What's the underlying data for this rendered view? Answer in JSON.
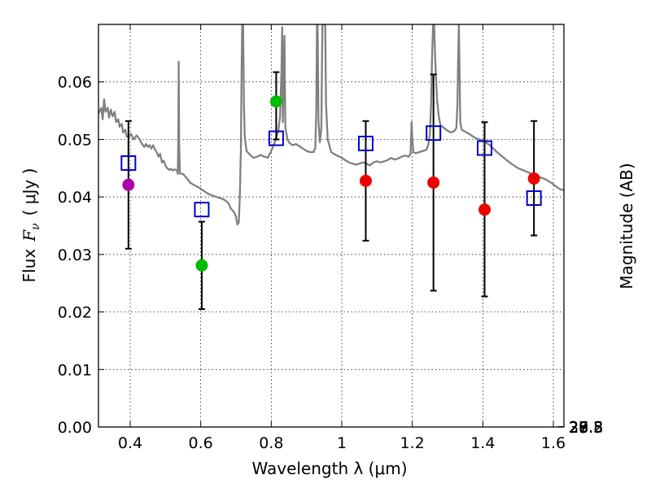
{
  "chart_data": {
    "type": "scatter",
    "title": "",
    "xlabel": "Wavelength  λ (μm)",
    "ylabel": "Flux  F_ν  ( μJy )",
    "ylabel_parts": {
      "prefix": "Flux",
      "symbol": "F",
      "subscript": "ν",
      "unit": "( μJy )"
    },
    "y2label": "Magnitude (AB)",
    "xlim": [
      0.31,
      1.63
    ],
    "ylim": [
      0.0,
      0.07
    ],
    "grid": true,
    "x_ticks": [
      0.4,
      0.6,
      0.8,
      1.0,
      1.2,
      1.4,
      1.6
    ],
    "x_tick_labels": [
      "0.4",
      "0.6",
      "0.8",
      "1",
      "1.2",
      "1.4",
      "1.6"
    ],
    "y_ticks": [
      0.0,
      0.01,
      0.02,
      0.03,
      0.04,
      0.05,
      0.06
    ],
    "y_tick_labels": [
      "0.00",
      "0.01",
      "0.02",
      "0.03",
      "0.04",
      "0.05",
      "0.06"
    ],
    "y2_ticks": [
      26.8,
      27,
      27.2,
      27.5,
      28,
      28.5,
      29,
      30
    ],
    "y2_tick_labels": [
      "26.8",
      "27",
      "27.2",
      "27.5",
      "28",
      "28.5",
      "29",
      "30"
    ],
    "colors": {
      "template": "#808080",
      "model": "#0000cc",
      "errorbar": "#000000"
    },
    "observed": [
      {
        "band": 1,
        "x": 0.395,
        "y": 0.0421,
        "yerr_low": 0.031,
        "yerr_high": 0.0532,
        "color": "#aa00aa"
      },
      {
        "band": 2,
        "x": 0.603,
        "y": 0.0281,
        "yerr_low": 0.0205,
        "yerr_high": 0.0357,
        "color": "#00bb00"
      },
      {
        "band": 3,
        "x": 0.814,
        "y": 0.0566,
        "yerr_low": 0.05,
        "yerr_high": 0.0617,
        "color": "#00bb00"
      },
      {
        "band": 4,
        "x": 1.068,
        "y": 0.0428,
        "yerr_low": 0.0324,
        "yerr_high": 0.0532,
        "color": "#ee0000"
      },
      {
        "band": 5,
        "x": 1.26,
        "y": 0.0425,
        "yerr_low": 0.0237,
        "yerr_high": 0.0613,
        "color": "#ee0000"
      },
      {
        "band": 6,
        "x": 1.405,
        "y": 0.0378,
        "yerr_low": 0.0227,
        "yerr_high": 0.053,
        "color": "#ee0000"
      },
      {
        "band": 7,
        "x": 1.545,
        "y": 0.0432,
        "yerr_low": 0.0333,
        "yerr_high": 0.0532,
        "color": "#ee0000"
      }
    ],
    "model_points": [
      {
        "x": 0.395,
        "y": 0.0459
      },
      {
        "x": 0.603,
        "y": 0.0378
      },
      {
        "x": 0.814,
        "y": 0.0502
      },
      {
        "x": 1.068,
        "y": 0.0493
      },
      {
        "x": 1.26,
        "y": 0.0511
      },
      {
        "x": 1.405,
        "y": 0.0485
      },
      {
        "x": 1.545,
        "y": 0.0398
      }
    ],
    "template_spectrum": [
      [
        0.31,
        0.0545
      ],
      [
        0.318,
        0.0555
      ],
      [
        0.322,
        0.0535
      ],
      [
        0.326,
        0.057
      ],
      [
        0.33,
        0.0548
      ],
      [
        0.336,
        0.0555
      ],
      [
        0.34,
        0.0538
      ],
      [
        0.345,
        0.0552
      ],
      [
        0.35,
        0.054
      ],
      [
        0.356,
        0.0548
      ],
      [
        0.36,
        0.053
      ],
      [
        0.366,
        0.0535
      ],
      [
        0.37,
        0.0522
      ],
      [
        0.376,
        0.0527
      ],
      [
        0.38,
        0.0512
      ],
      [
        0.386,
        0.0517
      ],
      [
        0.39,
        0.0505
      ],
      [
        0.397,
        0.0505
      ],
      [
        0.402,
        0.051
      ],
      [
        0.41,
        0.05
      ],
      [
        0.418,
        0.0507
      ],
      [
        0.425,
        0.0502
      ],
      [
        0.43,
        0.0496
      ],
      [
        0.436,
        0.049
      ],
      [
        0.44,
        0.0487
      ],
      [
        0.445,
        0.0492
      ],
      [
        0.45,
        0.0487
      ],
      [
        0.455,
        0.049
      ],
      [
        0.46,
        0.0484
      ],
      [
        0.465,
        0.049
      ],
      [
        0.47,
        0.0483
      ],
      [
        0.475,
        0.0478
      ],
      [
        0.48,
        0.047
      ],
      [
        0.485,
        0.0475
      ],
      [
        0.49,
        0.046
      ],
      [
        0.495,
        0.0463
      ],
      [
        0.5,
        0.0455
      ],
      [
        0.505,
        0.045
      ],
      [
        0.51,
        0.0447
      ],
      [
        0.515,
        0.0449
      ],
      [
        0.52,
        0.0446
      ],
      [
        0.525,
        0.0448
      ],
      [
        0.53,
        0.0447
      ],
      [
        0.533,
        0.0445
      ],
      [
        0.535,
        0.044
      ],
      [
        0.5365,
        0.051
      ],
      [
        0.5375,
        0.0635
      ],
      [
        0.539,
        0.049
      ],
      [
        0.541,
        0.0441
      ],
      [
        0.55,
        0.044
      ],
      [
        0.56,
        0.0433
      ],
      [
        0.57,
        0.0425
      ],
      [
        0.58,
        0.0421
      ],
      [
        0.59,
        0.0418
      ],
      [
        0.6,
        0.0414
      ],
      [
        0.61,
        0.041
      ],
      [
        0.62,
        0.0406
      ],
      [
        0.63,
        0.0403
      ],
      [
        0.64,
        0.0401
      ],
      [
        0.65,
        0.0399
      ],
      [
        0.66,
        0.0397
      ],
      [
        0.67,
        0.0394
      ],
      [
        0.68,
        0.0388
      ],
      [
        0.685,
        0.038
      ],
      [
        0.69,
        0.0377
      ],
      [
        0.695,
        0.0373
      ],
      [
        0.7,
        0.0366
      ],
      [
        0.704,
        0.0352
      ],
      [
        0.708,
        0.0356
      ],
      [
        0.711,
        0.0405
      ],
      [
        0.714,
        0.049
      ],
      [
        0.716,
        0.062
      ],
      [
        0.7175,
        0.07
      ],
      [
        0.72,
        0.07
      ],
      [
        0.7225,
        0.056
      ],
      [
        0.725,
        0.0505
      ],
      [
        0.73,
        0.048
      ],
      [
        0.74,
        0.0473
      ],
      [
        0.75,
        0.0468
      ],
      [
        0.76,
        0.047
      ],
      [
        0.77,
        0.0473
      ],
      [
        0.78,
        0.047
      ],
      [
        0.79,
        0.0468
      ],
      [
        0.8,
        0.048
      ],
      [
        0.81,
        0.0495
      ],
      [
        0.82,
        0.0515
      ],
      [
        0.825,
        0.054
      ],
      [
        0.829,
        0.062
      ],
      [
        0.831,
        0.0695
      ],
      [
        0.833,
        0.053
      ],
      [
        0.836,
        0.064
      ],
      [
        0.8375,
        0.068
      ],
      [
        0.8385,
        0.0605
      ],
      [
        0.84,
        0.052
      ],
      [
        0.846,
        0.05
      ],
      [
        0.85,
        0.0495
      ],
      [
        0.86,
        0.049
      ],
      [
        0.87,
        0.0492
      ],
      [
        0.88,
        0.0488
      ],
      [
        0.89,
        0.0484
      ],
      [
        0.9,
        0.048
      ],
      [
        0.91,
        0.0478
      ],
      [
        0.92,
        0.0478
      ],
      [
        0.925,
        0.0485
      ],
      [
        0.928,
        0.056
      ],
      [
        0.9295,
        0.07
      ],
      [
        0.9315,
        0.07
      ],
      [
        0.934,
        0.053
      ],
      [
        0.938,
        0.0495
      ],
      [
        0.942,
        0.052
      ],
      [
        0.945,
        0.07
      ],
      [
        0.948,
        0.07
      ],
      [
        0.95,
        0.07
      ],
      [
        0.953,
        0.07
      ],
      [
        0.9555,
        0.056
      ],
      [
        0.96,
        0.05
      ],
      [
        0.97,
        0.0478
      ],
      [
        0.98,
        0.0474
      ],
      [
        0.99,
        0.0471
      ],
      [
        1.0,
        0.0468
      ],
      [
        1.01,
        0.0464
      ],
      [
        1.02,
        0.046
      ],
      [
        1.03,
        0.0458
      ],
      [
        1.04,
        0.0456
      ],
      [
        1.05,
        0.0458
      ],
      [
        1.06,
        0.046
      ],
      [
        1.07,
        0.0458
      ],
      [
        1.08,
        0.0455
      ],
      [
        1.09,
        0.046
      ],
      [
        1.1,
        0.0462
      ],
      [
        1.11,
        0.046
      ],
      [
        1.12,
        0.0462
      ],
      [
        1.13,
        0.0464
      ],
      [
        1.14,
        0.0468
      ],
      [
        1.15,
        0.0465
      ],
      [
        1.16,
        0.0467
      ],
      [
        1.17,
        0.047
      ],
      [
        1.18,
        0.0472
      ],
      [
        1.19,
        0.047
      ],
      [
        1.195,
        0.0475
      ],
      [
        1.198,
        0.053
      ],
      [
        1.2,
        0.05
      ],
      [
        1.203,
        0.0478
      ],
      [
        1.21,
        0.0476
      ],
      [
        1.22,
        0.0478
      ],
      [
        1.23,
        0.048
      ],
      [
        1.24,
        0.0482
      ],
      [
        1.245,
        0.049
      ],
      [
        1.25,
        0.051
      ],
      [
        1.253,
        0.0555
      ],
      [
        1.256,
        0.064
      ],
      [
        1.259,
        0.07
      ],
      [
        1.262,
        0.07
      ],
      [
        1.265,
        0.064
      ],
      [
        1.27,
        0.057
      ],
      [
        1.275,
        0.054
      ],
      [
        1.28,
        0.0525
      ],
      [
        1.29,
        0.052
      ],
      [
        1.3,
        0.0515
      ],
      [
        1.31,
        0.0512
      ],
      [
        1.32,
        0.0515
      ],
      [
        1.325,
        0.052
      ],
      [
        1.328,
        0.056
      ],
      [
        1.33,
        0.064
      ],
      [
        1.332,
        0.07
      ],
      [
        1.334,
        0.062
      ],
      [
        1.336,
        0.053
      ],
      [
        1.34,
        0.0517
      ],
      [
        1.36,
        0.051
      ],
      [
        1.38,
        0.0502
      ],
      [
        1.4,
        0.0498
      ],
      [
        1.42,
        0.049
      ],
      [
        1.44,
        0.0478
      ],
      [
        1.46,
        0.0468
      ],
      [
        1.48,
        0.0458
      ],
      [
        1.5,
        0.045
      ],
      [
        1.52,
        0.0445
      ],
      [
        1.54,
        0.044
      ],
      [
        1.56,
        0.0435
      ],
      [
        1.58,
        0.043
      ],
      [
        1.6,
        0.0422
      ],
      [
        1.61,
        0.0417
      ],
      [
        1.62,
        0.0413
      ],
      [
        1.63,
        0.0412
      ]
    ]
  }
}
